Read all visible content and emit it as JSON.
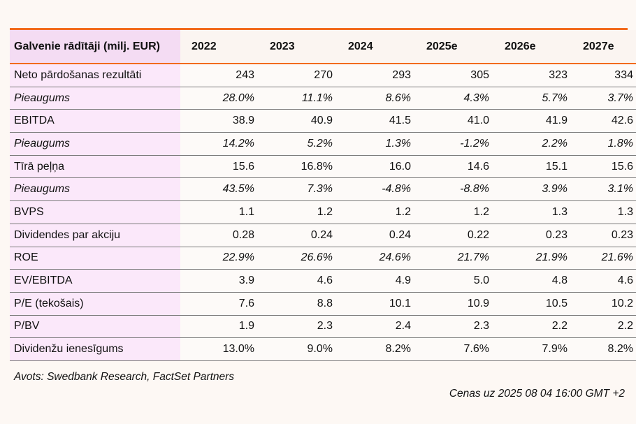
{
  "table": {
    "header_label": "Galvenie rādītāji (milj. EUR)",
    "years": [
      "2022",
      "2023",
      "2024",
      "2025e",
      "2026e",
      "2027e"
    ],
    "rows": [
      {
        "label": "Neto pārdošanas rezultāti",
        "italic": false,
        "values": [
          "243",
          "270",
          "293",
          "305",
          "323",
          "334"
        ]
      },
      {
        "label": "Pieaugums",
        "italic": true,
        "values": [
          "28.0%",
          "11.1%",
          "8.6%",
          "4.3%",
          "5.7%",
          "3.7%"
        ]
      },
      {
        "label": "EBITDA",
        "italic": false,
        "values": [
          "38.9",
          "40.9",
          "41.5",
          "41.0",
          "41.9",
          "42.6"
        ]
      },
      {
        "label": "Pieaugums",
        "italic": true,
        "values": [
          "14.2%",
          "5.2%",
          "1.3%",
          "-1.2%",
          "2.2%",
          "1.8%"
        ]
      },
      {
        "label": "Tīrā peļņa",
        "italic": false,
        "values": [
          "15.6",
          "16.8%",
          "16.0",
          "14.6",
          "15.1",
          "15.6"
        ]
      },
      {
        "label": "Pieaugums",
        "italic": true,
        "values": [
          "43.5%",
          "7.3%",
          "-4.8%",
          "-8.8%",
          "3.9%",
          "3.1%"
        ]
      },
      {
        "label": "BVPS",
        "italic": false,
        "values": [
          "1.1",
          "1.2",
          "1.2",
          "1.2",
          "1.3",
          "1.3"
        ]
      },
      {
        "label": "Dividendes par akciju",
        "italic": false,
        "values": [
          "0.28",
          "0.24",
          "0.24",
          "0.22",
          "0.23",
          "0.23"
        ]
      },
      {
        "label": "ROE",
        "italic": false,
        "italic_values": true,
        "values": [
          "22.9%",
          "26.6%",
          "24.6%",
          "21.7%",
          "21.9%",
          "21.6%"
        ]
      },
      {
        "label": "EV/EBITDA",
        "italic": false,
        "values": [
          "3.9",
          "4.6",
          "4.9",
          "5.0",
          "4.8",
          "4.6"
        ]
      },
      {
        "label": "P/E (tekošais)",
        "italic": false,
        "values": [
          "7.6",
          "8.8",
          "10.1",
          "10.9",
          "10.5",
          "10.2"
        ]
      },
      {
        "label": "P/BV",
        "italic": false,
        "values": [
          "1.9",
          "2.3",
          "2.4",
          "2.3",
          "2.2",
          "2.2"
        ]
      },
      {
        "label": "Dividenžu ienesīgums",
        "italic": false,
        "values": [
          "13.0%",
          "9.0%",
          "8.2%",
          "7.6%",
          "7.9%",
          "8.2%"
        ]
      }
    ]
  },
  "footer": {
    "source": "Avots: Swedbank Research, FactSet Partners",
    "price_note": "Cenas uz 2025 08 04 16:00 GMT +2"
  },
  "colors": {
    "accent_rule": "#f26b1d",
    "label_column_bg": "#fbe8fa",
    "header_label_bg": "#f4dcf3"
  }
}
